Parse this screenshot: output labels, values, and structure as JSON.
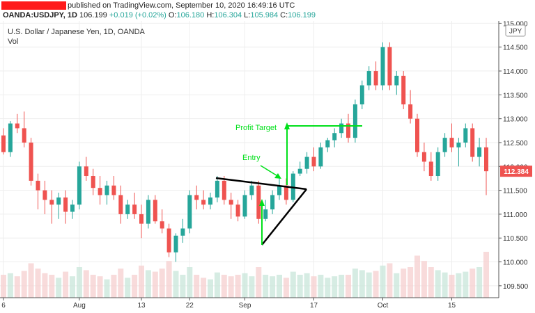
{
  "header": {
    "published": "published on TradingView.com, September 10, 2020 16:49:16 UTC",
    "symbol": "OANDA:USDJPY, 1D",
    "last": "106.199",
    "change": "+0.019 (+0.02%)",
    "o_label": "O:",
    "o_val": "106.180",
    "h_label": "H:",
    "h_val": "106.304",
    "l_label": "L:",
    "l_val": "105.984",
    "c_label": "C:",
    "c_val": "106.199"
  },
  "legend": {
    "title": "U.S. Dollar / Japanese Yen, 1D, OANDA",
    "volume": "Vol"
  },
  "currency_badge": "JPY",
  "price_tag": "112.384",
  "colors": {
    "up": "#26a69a",
    "down": "#ef5350",
    "annotation": "#00e01a",
    "trend": "#000000"
  },
  "annotations": {
    "entry": "Entry",
    "profit_target": "Profit Target"
  },
  "chart_data": {
    "type": "candlestick",
    "ylim": [
      109.25,
      115.05
    ],
    "y_ticks": [
      {
        "value": 109.5,
        "label": "109.500"
      },
      {
        "value": 110.0,
        "label": "110.000"
      },
      {
        "value": 110.5,
        "label": "110.500"
      },
      {
        "value": 111.0,
        "label": "111.000"
      },
      {
        "value": 111.5,
        "label": "111.500"
      },
      {
        "value": 112.0,
        "label": "112.000"
      },
      {
        "value": 112.5,
        "label": "112.500"
      },
      {
        "value": 113.0,
        "label": "113.000"
      },
      {
        "value": 113.5,
        "label": "113.500"
      },
      {
        "value": 114.0,
        "label": "114.000"
      },
      {
        "value": 114.5,
        "label": "114.500"
      },
      {
        "value": 115.0,
        "label": "115.000"
      }
    ],
    "x_ticks": [
      {
        "index": 0,
        "label": "6"
      },
      {
        "index": 11,
        "label": "Aug"
      },
      {
        "index": 20,
        "label": "13"
      },
      {
        "index": 27,
        "label": "22"
      },
      {
        "index": 35,
        "label": "Sep"
      },
      {
        "index": 45,
        "label": "17"
      },
      {
        "index": 55,
        "label": "Oct"
      },
      {
        "index": 65,
        "label": "15"
      }
    ],
    "candles": [
      {
        "o": 112.65,
        "h": 112.8,
        "l": 112.25,
        "c": 112.3,
        "v": 0.3
      },
      {
        "o": 112.3,
        "h": 112.95,
        "l": 112.2,
        "c": 112.9,
        "v": 0.32
      },
      {
        "o": 112.9,
        "h": 113.1,
        "l": 112.7,
        "c": 112.8,
        "v": 0.28
      },
      {
        "o": 112.8,
        "h": 113.15,
        "l": 112.4,
        "c": 112.5,
        "v": 0.35
      },
      {
        "o": 112.5,
        "h": 112.6,
        "l": 111.6,
        "c": 111.7,
        "v": 0.45
      },
      {
        "o": 111.7,
        "h": 111.85,
        "l": 111.1,
        "c": 111.5,
        "v": 0.38
      },
      {
        "o": 111.5,
        "h": 111.7,
        "l": 111.0,
        "c": 111.3,
        "v": 0.32
      },
      {
        "o": 111.3,
        "h": 111.5,
        "l": 110.8,
        "c": 111.2,
        "v": 0.3
      },
      {
        "o": 111.2,
        "h": 111.45,
        "l": 110.9,
        "c": 111.35,
        "v": 0.26
      },
      {
        "o": 111.35,
        "h": 111.5,
        "l": 110.8,
        "c": 111.05,
        "v": 0.34
      },
      {
        "o": 111.05,
        "h": 111.3,
        "l": 110.9,
        "c": 111.2,
        "v": 0.28
      },
      {
        "o": 111.2,
        "h": 112.1,
        "l": 111.1,
        "c": 112.0,
        "v": 0.4
      },
      {
        "o": 112.0,
        "h": 112.2,
        "l": 111.7,
        "c": 111.8,
        "v": 0.36
      },
      {
        "o": 111.8,
        "h": 111.95,
        "l": 111.4,
        "c": 111.55,
        "v": 0.3
      },
      {
        "o": 111.55,
        "h": 111.8,
        "l": 111.2,
        "c": 111.4,
        "v": 0.28
      },
      {
        "o": 111.4,
        "h": 111.7,
        "l": 111.2,
        "c": 111.6,
        "v": 0.24
      },
      {
        "o": 111.6,
        "h": 111.8,
        "l": 111.3,
        "c": 111.4,
        "v": 0.3
      },
      {
        "o": 111.4,
        "h": 111.6,
        "l": 110.8,
        "c": 111.0,
        "v": 0.38
      },
      {
        "o": 111.0,
        "h": 111.3,
        "l": 110.9,
        "c": 111.2,
        "v": 0.26
      },
      {
        "o": 111.2,
        "h": 111.45,
        "l": 110.9,
        "c": 111.0,
        "v": 0.3
      },
      {
        "o": 111.0,
        "h": 111.2,
        "l": 110.5,
        "c": 110.8,
        "v": 0.42
      },
      {
        "o": 110.8,
        "h": 111.4,
        "l": 110.7,
        "c": 111.3,
        "v": 0.36
      },
      {
        "o": 111.3,
        "h": 111.4,
        "l": 110.8,
        "c": 110.85,
        "v": 0.34
      },
      {
        "o": 110.85,
        "h": 111.1,
        "l": 110.6,
        "c": 110.7,
        "v": 0.38
      },
      {
        "o": 110.7,
        "h": 110.8,
        "l": 110.1,
        "c": 110.2,
        "v": 0.48
      },
      {
        "o": 110.2,
        "h": 110.6,
        "l": 110.0,
        "c": 110.55,
        "v": 0.35
      },
      {
        "o": 110.55,
        "h": 110.9,
        "l": 110.4,
        "c": 110.7,
        "v": 0.3
      },
      {
        "o": 110.7,
        "h": 111.5,
        "l": 110.6,
        "c": 111.4,
        "v": 0.4
      },
      {
        "o": 111.4,
        "h": 111.6,
        "l": 111.1,
        "c": 111.3,
        "v": 0.3
      },
      {
        "o": 111.3,
        "h": 111.5,
        "l": 111.1,
        "c": 111.2,
        "v": 0.26
      },
      {
        "o": 111.2,
        "h": 111.45,
        "l": 111.1,
        "c": 111.35,
        "v": 0.24
      },
      {
        "o": 111.35,
        "h": 111.8,
        "l": 111.25,
        "c": 111.7,
        "v": 0.33
      },
      {
        "o": 111.7,
        "h": 111.8,
        "l": 111.2,
        "c": 111.3,
        "v": 0.3
      },
      {
        "o": 111.3,
        "h": 111.45,
        "l": 110.9,
        "c": 111.2,
        "v": 0.28
      },
      {
        "o": 111.2,
        "h": 111.3,
        "l": 110.85,
        "c": 110.95,
        "v": 0.3
      },
      {
        "o": 110.95,
        "h": 111.5,
        "l": 110.9,
        "c": 111.4,
        "v": 0.32
      },
      {
        "o": 111.4,
        "h": 111.7,
        "l": 111.3,
        "c": 111.6,
        "v": 0.28
      },
      {
        "o": 111.6,
        "h": 111.7,
        "l": 110.8,
        "c": 110.9,
        "v": 0.4
      },
      {
        "o": 110.9,
        "h": 111.3,
        "l": 110.85,
        "c": 111.1,
        "v": 0.3
      },
      {
        "o": 111.1,
        "h": 111.5,
        "l": 111.0,
        "c": 111.4,
        "v": 0.28
      },
      {
        "o": 111.4,
        "h": 111.8,
        "l": 111.3,
        "c": 111.6,
        "v": 0.3
      },
      {
        "o": 111.6,
        "h": 111.75,
        "l": 111.2,
        "c": 111.3,
        "v": 0.26
      },
      {
        "o": 111.3,
        "h": 111.9,
        "l": 111.25,
        "c": 111.85,
        "v": 0.34
      },
      {
        "o": 111.85,
        "h": 112.1,
        "l": 111.8,
        "c": 111.95,
        "v": 0.3
      },
      {
        "o": 111.95,
        "h": 112.3,
        "l": 111.85,
        "c": 112.2,
        "v": 0.32
      },
      {
        "o": 112.2,
        "h": 112.4,
        "l": 111.9,
        "c": 112.0,
        "v": 0.28
      },
      {
        "o": 112.0,
        "h": 112.5,
        "l": 111.95,
        "c": 112.4,
        "v": 0.3
      },
      {
        "o": 112.4,
        "h": 112.6,
        "l": 112.3,
        "c": 112.55,
        "v": 0.26
      },
      {
        "o": 112.55,
        "h": 112.8,
        "l": 112.4,
        "c": 112.7,
        "v": 0.28
      },
      {
        "o": 112.7,
        "h": 113.0,
        "l": 112.6,
        "c": 112.9,
        "v": 0.3
      },
      {
        "o": 112.9,
        "h": 113.1,
        "l": 112.5,
        "c": 112.6,
        "v": 0.3
      },
      {
        "o": 112.6,
        "h": 113.4,
        "l": 112.5,
        "c": 113.3,
        "v": 0.38
      },
      {
        "o": 113.3,
        "h": 113.8,
        "l": 113.2,
        "c": 113.7,
        "v": 0.36
      },
      {
        "o": 113.7,
        "h": 114.1,
        "l": 113.6,
        "c": 114.0,
        "v": 0.33
      },
      {
        "o": 114.0,
        "h": 114.2,
        "l": 113.6,
        "c": 113.7,
        "v": 0.35
      },
      {
        "o": 113.7,
        "h": 114.6,
        "l": 113.6,
        "c": 114.5,
        "v": 0.42
      },
      {
        "o": 114.5,
        "h": 114.6,
        "l": 113.6,
        "c": 113.7,
        "v": 0.45
      },
      {
        "o": 113.7,
        "h": 114.0,
        "l": 113.5,
        "c": 113.9,
        "v": 0.32
      },
      {
        "o": 113.9,
        "h": 114.0,
        "l": 113.2,
        "c": 113.3,
        "v": 0.38
      },
      {
        "o": 113.3,
        "h": 113.6,
        "l": 112.9,
        "c": 113.0,
        "v": 0.4
      },
      {
        "o": 113.0,
        "h": 113.1,
        "l": 112.2,
        "c": 112.3,
        "v": 0.55
      },
      {
        "o": 112.3,
        "h": 112.5,
        "l": 111.9,
        "c": 112.1,
        "v": 0.48
      },
      {
        "o": 112.1,
        "h": 112.3,
        "l": 111.7,
        "c": 111.8,
        "v": 0.4
      },
      {
        "o": 111.8,
        "h": 112.4,
        "l": 111.7,
        "c": 112.3,
        "v": 0.36
      },
      {
        "o": 112.3,
        "h": 112.7,
        "l": 112.2,
        "c": 112.6,
        "v": 0.33
      },
      {
        "o": 112.6,
        "h": 112.9,
        "l": 112.3,
        "c": 112.4,
        "v": 0.3
      },
      {
        "o": 112.4,
        "h": 112.6,
        "l": 112.0,
        "c": 112.5,
        "v": 0.32
      },
      {
        "o": 112.5,
        "h": 112.9,
        "l": 112.4,
        "c": 112.8,
        "v": 0.34
      },
      {
        "o": 112.8,
        "h": 112.9,
        "l": 112.1,
        "c": 112.2,
        "v": 0.38
      },
      {
        "o": 112.2,
        "h": 112.6,
        "l": 112.0,
        "c": 112.4,
        "v": 0.4
      },
      {
        "o": 112.4,
        "h": 112.6,
        "l": 111.4,
        "c": 111.9,
        "v": 0.6
      }
    ]
  }
}
